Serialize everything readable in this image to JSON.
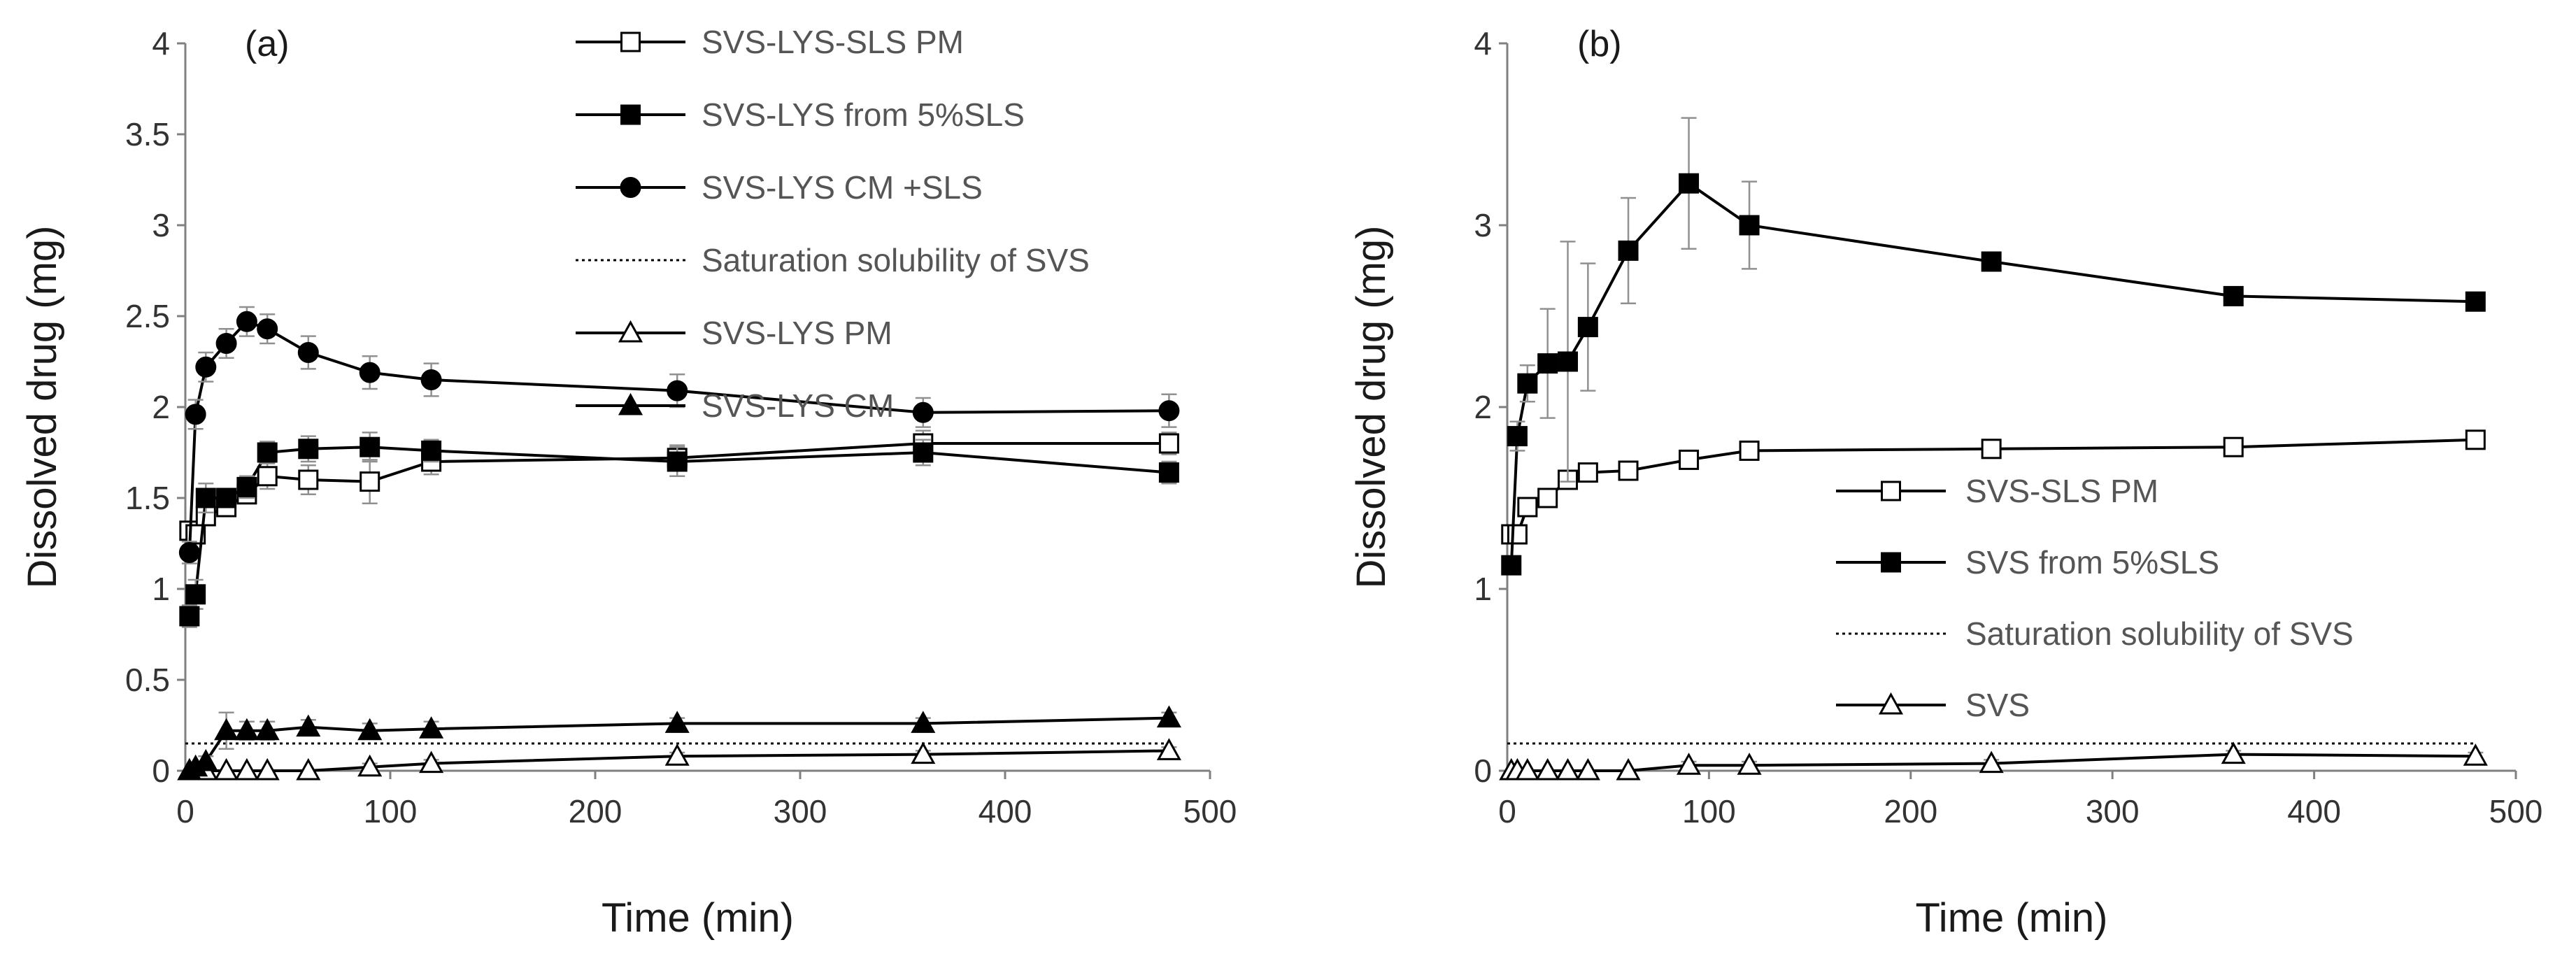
{
  "chart_data": [
    {
      "type": "line",
      "panel_label": "(a)",
      "xlabel": "Time (min)",
      "ylabel": "Dissolved drug (mg)",
      "xlim": [
        0,
        500
      ],
      "ylim": [
        0,
        4
      ],
      "xticks": [
        0,
        100,
        200,
        300,
        400,
        500
      ],
      "yticks": [
        0,
        0.5,
        1,
        1.5,
        2,
        2.5,
        3,
        3.5,
        4
      ],
      "ytick_labels": [
        "0",
        "0.5",
        "1",
        "1.5",
        "2",
        "2.5",
        "3",
        "3.5",
        "4"
      ],
      "grid": false,
      "legend_position": "top-right",
      "series": [
        {
          "name": "SVS-LYS-SLS PM",
          "marker": "square-open",
          "line": "solid",
          "x": [
            2,
            5,
            10,
            20,
            30,
            40,
            60,
            90,
            120,
            240,
            360,
            480
          ],
          "y": [
            1.32,
            1.3,
            1.4,
            1.45,
            1.52,
            1.62,
            1.6,
            1.59,
            1.7,
            1.72,
            1.8,
            1.8
          ],
          "err": [
            0.04,
            0.05,
            0.05,
            0.04,
            0.05,
            0.07,
            0.08,
            0.12,
            0.07,
            0.07,
            0.07,
            0.06
          ]
        },
        {
          "name": " SVS-LYS from 5%SLS",
          "marker": "square-filled",
          "line": "solid",
          "x": [
            2,
            5,
            10,
            20,
            30,
            40,
            60,
            90,
            120,
            240,
            360,
            480
          ],
          "y": [
            0.85,
            0.97,
            1.5,
            1.5,
            1.56,
            1.75,
            1.77,
            1.78,
            1.76,
            1.7,
            1.75,
            1.64
          ],
          "err": [
            0.06,
            0.08,
            0.08,
            0.05,
            0.06,
            0.06,
            0.07,
            0.08,
            0.06,
            0.08,
            0.07,
            0.06
          ]
        },
        {
          "name": "SVS-LYS CM +SLS",
          "marker": "circle-filled",
          "line": "solid",
          "x": [
            2,
            5,
            10,
            20,
            30,
            40,
            60,
            90,
            120,
            240,
            360,
            480
          ],
          "y": [
            1.2,
            1.96,
            2.22,
            2.35,
            2.47,
            2.43,
            2.3,
            2.19,
            2.15,
            2.09,
            1.97,
            1.98
          ],
          "err": [
            0.06,
            0.08,
            0.08,
            0.08,
            0.08,
            0.08,
            0.09,
            0.09,
            0.09,
            0.09,
            0.08,
            0.09
          ]
        },
        {
          "name": "Saturation solubility of SVS",
          "marker": "none",
          "line": "dotted",
          "x": [
            0,
            480
          ],
          "y": [
            0.15,
            0.15
          ],
          "err": [
            0,
            0
          ]
        },
        {
          "name": "SVS-LYS PM",
          "marker": "triangle-open",
          "line": "solid",
          "x": [
            2,
            5,
            10,
            20,
            30,
            40,
            60,
            90,
            120,
            240,
            360,
            480
          ],
          "y": [
            0.0,
            0.0,
            0.0,
            0.0,
            0.0,
            0.0,
            0.0,
            0.02,
            0.04,
            0.08,
            0.09,
            0.11
          ],
          "err": [
            0,
            0,
            0,
            0,
            0,
            0,
            0,
            0.02,
            0.02,
            0.02,
            0.02,
            0.02
          ]
        },
        {
          "name": "SVS-LYS CM",
          "marker": "triangle-filled",
          "line": "solid",
          "x": [
            2,
            5,
            10,
            20,
            30,
            40,
            60,
            90,
            120,
            240,
            360,
            480
          ],
          "y": [
            0.0,
            0.02,
            0.05,
            0.22,
            0.22,
            0.22,
            0.24,
            0.22,
            0.23,
            0.26,
            0.26,
            0.29
          ],
          "err": [
            0,
            0.02,
            0.03,
            0.1,
            0.05,
            0.05,
            0.04,
            0.04,
            0.04,
            0.03,
            0.03,
            0.03
          ]
        }
      ]
    },
    {
      "type": "line",
      "panel_label": "(b)",
      "xlabel": "Time (min)",
      "ylabel": "Dissolved drug (mg)",
      "xlim": [
        0,
        500
      ],
      "ylim": [
        0,
        4
      ],
      "xticks": [
        0,
        100,
        200,
        300,
        400,
        500
      ],
      "yticks": [
        0,
        1,
        2,
        3,
        4
      ],
      "ytick_labels": [
        "0",
        "1",
        "2",
        "3",
        "4"
      ],
      "grid": false,
      "legend_position": "center-right",
      "series": [
        {
          "name": "SVS-SLS PM",
          "marker": "square-open",
          "line": "solid",
          "x": [
            2,
            5,
            10,
            20,
            30,
            40,
            60,
            90,
            120,
            240,
            360,
            480
          ],
          "y": [
            1.3,
            1.3,
            1.45,
            1.5,
            1.6,
            1.64,
            1.65,
            1.71,
            1.76,
            1.77,
            1.78,
            1.82
          ],
          "err": [
            0.03,
            0.03,
            0.04,
            0.04,
            0.04,
            0.04,
            0.04,
            0.04,
            0.04,
            0.04,
            0.04,
            0.04
          ]
        },
        {
          "name": "SVS from 5%SLS",
          "marker": "square-filled",
          "line": "solid",
          "x": [
            2,
            5,
            10,
            20,
            30,
            40,
            60,
            90,
            120,
            240,
            360,
            480
          ],
          "y": [
            1.13,
            1.84,
            2.13,
            2.24,
            2.25,
            2.44,
            2.86,
            3.23,
            3.0,
            2.8,
            2.61,
            2.58
          ],
          "err": [
            0.05,
            0.08,
            0.1,
            0.3,
            0.66,
            0.35,
            0.29,
            0.36,
            0.24,
            0.05,
            0.04,
            0.04
          ]
        },
        {
          "name": "Saturation solubility of SVS",
          "marker": "none",
          "line": "dotted",
          "x": [
            0,
            480
          ],
          "y": [
            0.15,
            0.15
          ],
          "err": [
            0,
            0
          ]
        },
        {
          "name": "SVS",
          "marker": "triangle-open",
          "line": "solid",
          "x": [
            2,
            5,
            10,
            20,
            30,
            40,
            60,
            90,
            120,
            240,
            360,
            480
          ],
          "y": [
            0.0,
            0.0,
            0.0,
            0.0,
            0.0,
            0.0,
            0.0,
            0.03,
            0.03,
            0.04,
            0.09,
            0.08
          ],
          "err": [
            0,
            0,
            0,
            0,
            0,
            0,
            0,
            0.02,
            0.02,
            0.02,
            0.02,
            0.02
          ]
        }
      ]
    }
  ]
}
